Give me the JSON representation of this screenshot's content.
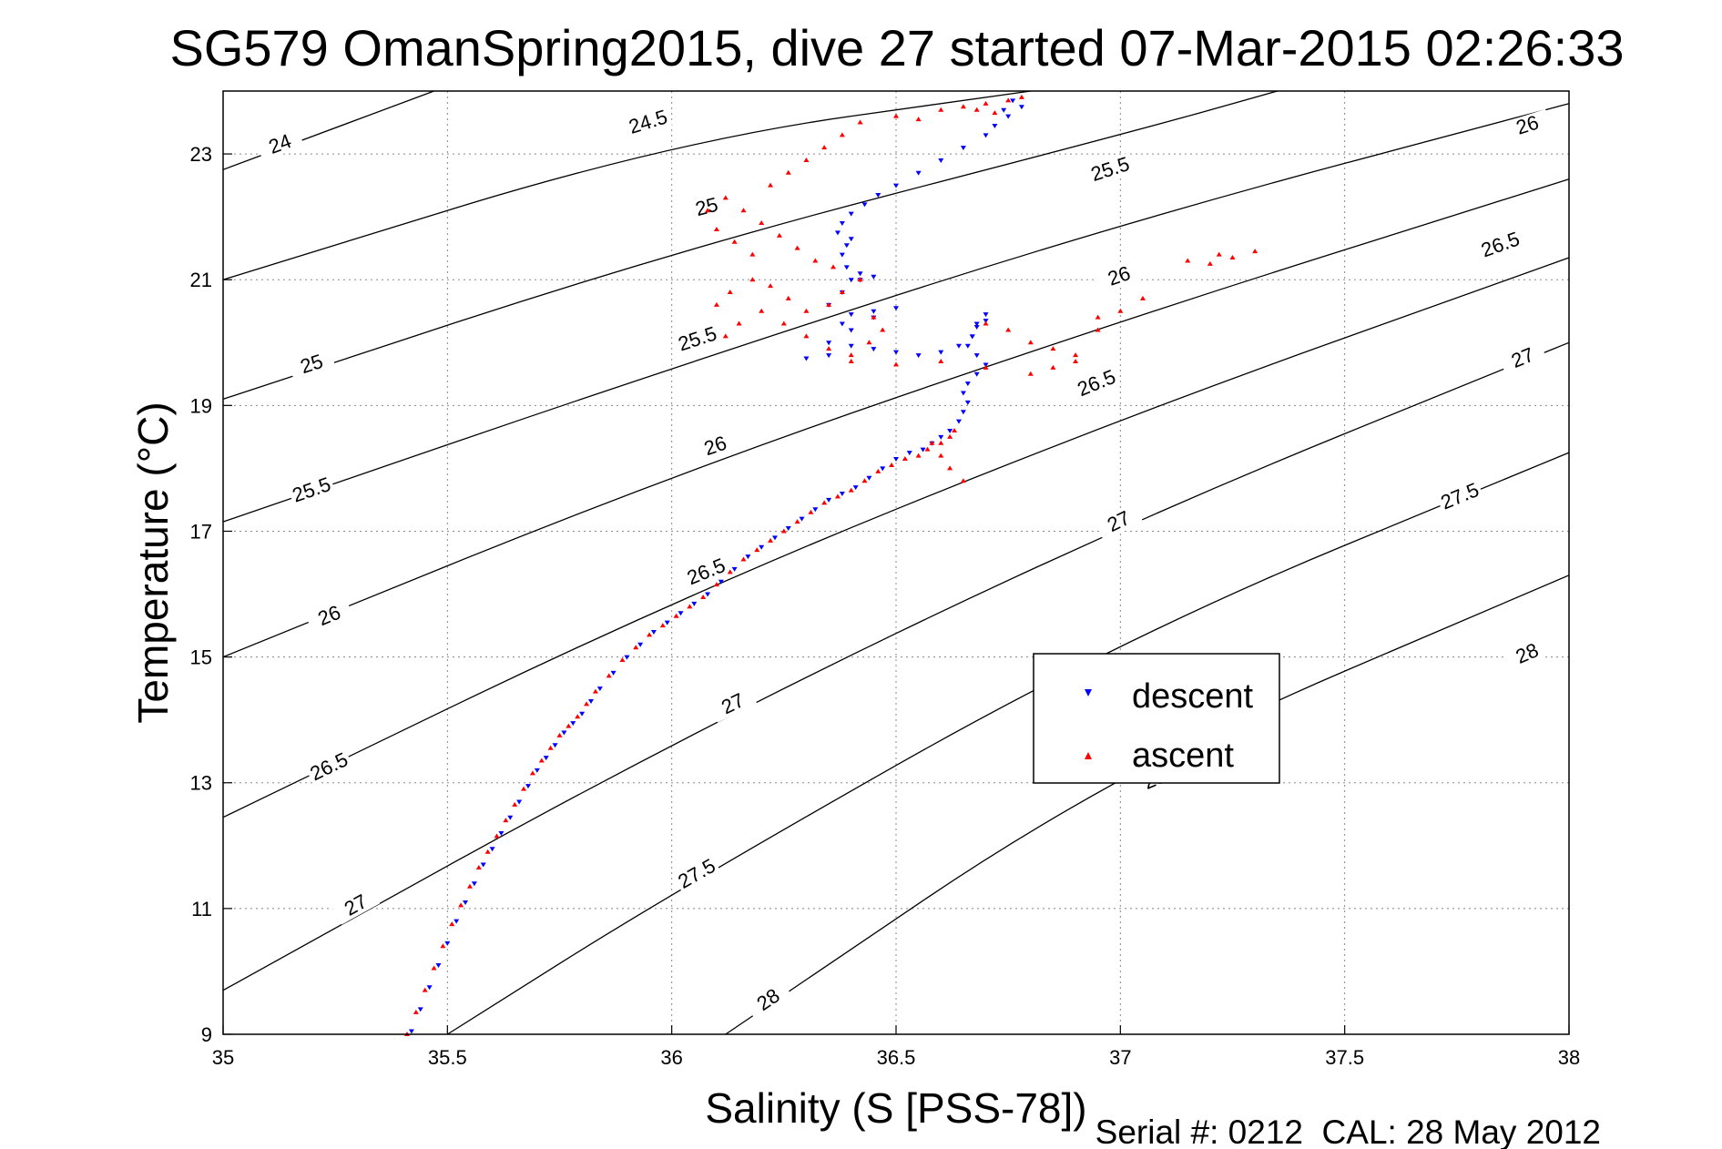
{
  "chart_data": {
    "type": "scatter",
    "title": "SG579 OmanSpring2015, dive 27 started 07-Mar-2015 02:26:33",
    "xlabel": "Salinity (S [PSS-78])",
    "ylabel": "Temperature (°C)",
    "xlim": [
      35,
      38
    ],
    "ylim": [
      9,
      24
    ],
    "x_ticks": [
      35,
      35.5,
      36,
      36.5,
      37,
      37.5,
      38
    ],
    "x_tick_labels": [
      "35",
      "35.5",
      "36",
      "36.5",
      "37",
      "37.5",
      "38"
    ],
    "y_ticks": [
      9,
      11,
      13,
      15,
      17,
      19,
      21,
      23
    ],
    "y_tick_labels": [
      "9",
      "11",
      "13",
      "15",
      "17",
      "19",
      "21",
      "23"
    ],
    "grid": "dotted",
    "legend_position": "right-middle",
    "footer": "Serial #: 0212  CAL: 28 May 2012",
    "colors": {
      "descent": "#0000ff",
      "ascent": "#ff0000",
      "contour": "#000000",
      "grid": "#888888"
    },
    "contours": [
      {
        "label": "24",
        "points": [
          [
            35.0,
            22.75
          ],
          [
            35.47,
            24.0
          ]
        ],
        "label_at": [
          [
            35.13,
            23.1
          ]
        ]
      },
      {
        "label": "24.5",
        "points": [
          [
            35.0,
            21.0
          ],
          [
            36.0,
            23.2
          ],
          [
            36.8,
            24.0
          ]
        ],
        "label_at": [
          [
            35.95,
            23.45
          ]
        ]
      },
      {
        "label": "25",
        "points": [
          [
            35.0,
            19.1
          ],
          [
            36.0,
            21.45
          ],
          [
            37.0,
            23.3
          ],
          [
            37.35,
            24.0
          ]
        ],
        "label_at": [
          [
            35.2,
            19.6
          ],
          [
            36.08,
            22.1
          ]
        ]
      },
      {
        "label": "25.5",
        "points": [
          [
            35.0,
            17.15
          ],
          [
            36.0,
            19.6
          ],
          [
            37.0,
            21.9
          ],
          [
            38.0,
            23.8
          ]
        ],
        "label_at": [
          [
            35.2,
            17.6
          ],
          [
            36.06,
            20.0
          ],
          [
            36.98,
            22.7
          ]
        ]
      },
      {
        "label": "26",
        "points": [
          [
            35.0,
            15.0
          ],
          [
            36.0,
            17.9
          ],
          [
            37.0,
            20.35
          ],
          [
            38.0,
            22.6
          ]
        ],
        "label_at": [
          [
            35.24,
            15.6
          ],
          [
            36.1,
            18.3
          ],
          [
            37.0,
            21.0
          ],
          [
            37.91,
            23.4
          ]
        ]
      },
      {
        "label": "26.5",
        "points": [
          [
            35.0,
            12.45
          ],
          [
            36.0,
            15.9
          ],
          [
            37.0,
            18.8
          ],
          [
            38.0,
            21.35
          ]
        ],
        "label_at": [
          [
            35.24,
            13.2
          ],
          [
            36.08,
            16.3
          ],
          [
            36.95,
            19.3
          ],
          [
            37.85,
            21.5
          ]
        ]
      },
      {
        "label": "27",
        "points": [
          [
            35.0,
            9.7
          ],
          [
            36.0,
            13.65
          ],
          [
            37.0,
            17.1
          ],
          [
            38.0,
            20.0
          ]
        ],
        "label_at": [
          [
            35.3,
            11.0
          ],
          [
            36.14,
            14.2
          ],
          [
            37.0,
            17.1
          ],
          [
            37.9,
            19.7
          ]
        ]
      },
      {
        "label": "27.5",
        "points": [
          [
            35.5,
            9.0
          ],
          [
            36.0,
            11.25
          ],
          [
            37.0,
            15.3
          ],
          [
            38.0,
            18.25
          ]
        ],
        "label_at": [
          [
            36.06,
            11.5
          ],
          [
            37.76,
            17.5
          ]
        ]
      },
      {
        "label": "28",
        "points": [
          [
            36.12,
            9.0
          ],
          [
            37.0,
            13.25
          ],
          [
            38.0,
            16.3
          ]
        ],
        "label_at": [
          [
            36.22,
            9.5
          ],
          [
            37.08,
            13.0
          ],
          [
            37.91,
            15.0
          ]
        ]
      }
    ],
    "series": [
      {
        "name": "descent",
        "marker": "triangle-down",
        "x": [
          35.42,
          35.44,
          35.46,
          35.48,
          35.5,
          35.52,
          35.54,
          35.56,
          35.58,
          35.6,
          35.62,
          35.64,
          35.66,
          35.68,
          35.7,
          35.72,
          35.74,
          35.76,
          35.78,
          35.8,
          35.82,
          35.84,
          35.87,
          35.9,
          35.93,
          35.96,
          35.99,
          36.02,
          36.05,
          36.08,
          36.11,
          36.14,
          36.17,
          36.2,
          36.23,
          36.26,
          36.29,
          36.32,
          36.35,
          36.38,
          36.41,
          36.44,
          36.47,
          36.5,
          36.53,
          36.56,
          36.58,
          36.6,
          36.62,
          36.64,
          36.65,
          36.66,
          36.65,
          36.66,
          36.68,
          36.7,
          36.68,
          36.66,
          36.67,
          36.68,
          36.7,
          36.7,
          36.68,
          36.67,
          36.64,
          36.6,
          36.55,
          36.5,
          36.45,
          36.4,
          36.35,
          36.3,
          36.35,
          36.4,
          36.45,
          36.5,
          36.45,
          36.4,
          36.38,
          36.35,
          36.38,
          36.4,
          36.42,
          36.45,
          36.42,
          36.39,
          36.38,
          36.39,
          36.4,
          36.37,
          36.38,
          36.4,
          36.43,
          36.46,
          36.5,
          36.55,
          36.6,
          36.65,
          36.7,
          36.72,
          36.75,
          36.78,
          36.76,
          36.74
        ],
        "y": [
          9.05,
          9.4,
          9.75,
          10.1,
          10.45,
          10.8,
          11.1,
          11.4,
          11.7,
          11.95,
          12.2,
          12.45,
          12.7,
          12.95,
          13.2,
          13.4,
          13.6,
          13.8,
          13.95,
          14.1,
          14.3,
          14.5,
          14.75,
          15.0,
          15.2,
          15.4,
          15.55,
          15.7,
          15.85,
          16.0,
          16.2,
          16.4,
          16.6,
          16.75,
          16.9,
          17.05,
          17.2,
          17.35,
          17.5,
          17.6,
          17.7,
          17.85,
          18.0,
          18.15,
          18.25,
          18.3,
          18.4,
          18.5,
          18.6,
          18.75,
          18.9,
          19.05,
          19.2,
          19.35,
          19.5,
          19.65,
          19.8,
          19.95,
          20.1,
          20.25,
          20.35,
          20.45,
          20.3,
          20.1,
          19.95,
          19.85,
          19.8,
          19.85,
          19.9,
          19.95,
          19.8,
          19.75,
          20.0,
          20.2,
          20.4,
          20.55,
          20.5,
          20.45,
          20.3,
          20.6,
          20.8,
          21.0,
          21.1,
          21.05,
          21.0,
          21.2,
          21.4,
          21.55,
          21.65,
          21.75,
          21.9,
          22.05,
          22.2,
          22.35,
          22.5,
          22.7,
          22.9,
          23.1,
          23.3,
          23.45,
          23.6,
          23.75,
          23.85,
          23.7
        ]
      },
      {
        "name": "ascent",
        "marker": "triangle-up",
        "x": [
          35.41,
          35.43,
          35.45,
          35.47,
          35.49,
          35.51,
          35.53,
          35.55,
          35.57,
          35.59,
          35.61,
          35.63,
          35.65,
          35.67,
          35.69,
          35.71,
          35.73,
          35.75,
          35.77,
          35.79,
          35.81,
          35.83,
          35.86,
          35.89,
          35.92,
          35.95,
          35.98,
          36.01,
          36.04,
          36.07,
          36.1,
          36.13,
          36.16,
          36.19,
          36.22,
          36.25,
          36.28,
          36.31,
          36.34,
          36.37,
          36.4,
          36.43,
          36.46,
          36.49,
          36.52,
          36.55,
          36.57,
          36.6,
          36.62,
          36.63,
          36.58,
          36.6,
          36.62,
          36.65,
          36.7,
          36.75,
          36.8,
          36.85,
          36.9,
          36.95,
          37.0,
          37.05,
          36.95,
          36.9,
          36.85,
          36.8,
          36.7,
          36.6,
          36.5,
          36.4,
          36.35,
          36.3,
          36.25,
          36.2,
          36.15,
          36.12,
          36.1,
          36.13,
          36.18,
          36.22,
          36.26,
          36.3,
          36.35,
          36.38,
          36.42,
          36.45,
          36.47,
          36.44,
          36.4,
          36.36,
          36.32,
          36.28,
          36.24,
          36.2,
          36.16,
          36.12,
          36.08,
          36.1,
          36.14,
          36.18,
          36.22,
          36.26,
          36.3,
          36.34,
          36.38,
          36.42,
          36.5,
          36.55,
          36.6,
          36.65,
          36.7,
          36.75,
          36.78,
          36.72,
          36.68,
          37.2,
          37.25,
          37.3,
          37.22,
          37.15
        ],
        "y": [
          9.0,
          9.35,
          9.7,
          10.05,
          10.4,
          10.75,
          11.05,
          11.35,
          11.65,
          11.9,
          12.15,
          12.4,
          12.65,
          12.9,
          13.15,
          13.35,
          13.55,
          13.75,
          13.9,
          14.05,
          14.25,
          14.45,
          14.7,
          14.95,
          15.15,
          15.35,
          15.5,
          15.65,
          15.8,
          15.95,
          16.15,
          16.35,
          16.55,
          16.7,
          16.85,
          17.0,
          17.15,
          17.3,
          17.45,
          17.55,
          17.65,
          17.8,
          17.95,
          18.05,
          18.15,
          18.2,
          18.3,
          18.4,
          18.5,
          18.6,
          18.4,
          18.2,
          18.0,
          17.8,
          20.3,
          20.2,
          20.0,
          19.9,
          19.7,
          20.4,
          20.5,
          20.7,
          20.2,
          19.8,
          19.6,
          19.5,
          19.6,
          19.7,
          19.65,
          19.7,
          19.9,
          20.1,
          20.3,
          20.5,
          20.3,
          20.1,
          20.6,
          20.8,
          21.0,
          20.9,
          20.7,
          20.5,
          20.6,
          20.8,
          21.0,
          20.4,
          20.2,
          20.0,
          19.8,
          21.2,
          21.3,
          21.5,
          21.7,
          21.9,
          22.1,
          22.3,
          22.1,
          21.8,
          21.6,
          21.4,
          22.5,
          22.7,
          22.9,
          23.1,
          23.3,
          23.5,
          23.6,
          23.55,
          23.7,
          23.75,
          23.8,
          23.85,
          23.9,
          23.65,
          23.7,
          21.25,
          21.35,
          21.45,
          21.4,
          21.3
        ]
      }
    ]
  }
}
